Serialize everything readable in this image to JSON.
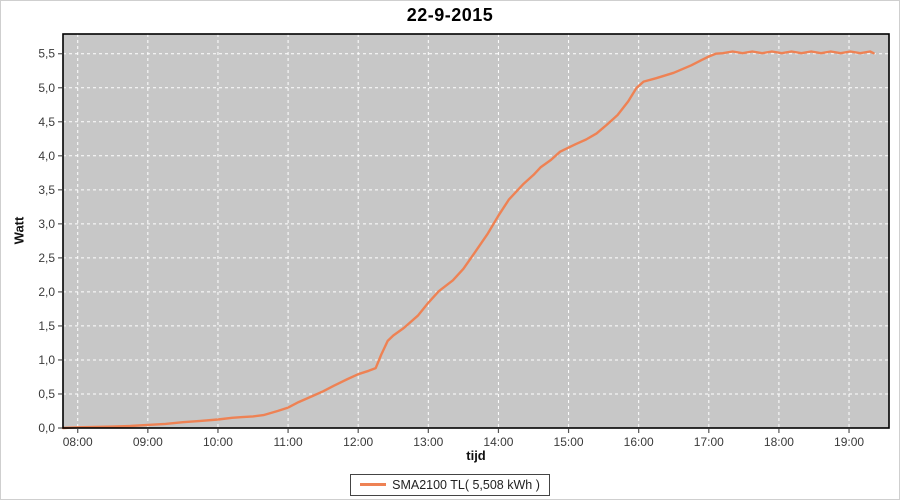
{
  "window": {
    "title": "22-9-2015"
  },
  "legend": {
    "label": "SMA2100 TL( 5,508 kWh )"
  },
  "colors": {
    "plot_background": "#c7c7c7",
    "grid_line": "#ffffff",
    "plot_border": "#000000",
    "series_line": "#ee8254",
    "tick_label": "#3a3a3a",
    "tick_mark": "#555555"
  },
  "chart_data": {
    "type": "line",
    "title": "22-9-2015",
    "xlabel": "tijd",
    "ylabel": "Watt",
    "grid": "on",
    "legend_position": "bottom-center",
    "x_axis": {
      "unit": "time",
      "range_hours": [
        7.79,
        19.57
      ],
      "tick_hours": [
        8,
        9,
        10,
        11,
        12,
        13,
        14,
        15,
        16,
        17,
        18,
        19
      ],
      "tick_labels": [
        "08:00",
        "09:00",
        "10:00",
        "11:00",
        "12:00",
        "13:00",
        "14:00",
        "15:00",
        "16:00",
        "17:00",
        "18:00",
        "19:00"
      ]
    },
    "y_axis": {
      "range": [
        0,
        5.79
      ],
      "tick_values": [
        0.0,
        0.5,
        1.0,
        1.5,
        2.0,
        2.5,
        3.0,
        3.5,
        4.0,
        4.5,
        5.0,
        5.5
      ],
      "tick_labels": [
        "0,0",
        "0,5",
        "1,0",
        "1,5",
        "2,0",
        "2,5",
        "3,0",
        "3,5",
        "4,0",
        "4,5",
        "5,0",
        "5,5"
      ]
    },
    "series": [
      {
        "name": "SMA2100 TL( 5,508 kWh )",
        "color": "#ee8254",
        "total_kwh_label": "5,508 kWh",
        "points": [
          [
            7.79,
            0.0
          ],
          [
            8.0,
            0.01
          ],
          [
            8.25,
            0.015
          ],
          [
            8.5,
            0.02
          ],
          [
            8.75,
            0.03
          ],
          [
            9.0,
            0.045
          ],
          [
            9.25,
            0.06
          ],
          [
            9.5,
            0.085
          ],
          [
            9.75,
            0.105
          ],
          [
            10.0,
            0.125
          ],
          [
            10.2,
            0.15
          ],
          [
            10.35,
            0.16
          ],
          [
            10.5,
            0.17
          ],
          [
            10.65,
            0.19
          ],
          [
            10.85,
            0.25
          ],
          [
            11.0,
            0.3
          ],
          [
            11.15,
            0.38
          ],
          [
            11.35,
            0.47
          ],
          [
            11.5,
            0.54
          ],
          [
            11.65,
            0.62
          ],
          [
            11.85,
            0.72
          ],
          [
            12.0,
            0.79
          ],
          [
            12.15,
            0.84
          ],
          [
            12.25,
            0.88
          ],
          [
            12.33,
            1.08
          ],
          [
            12.42,
            1.28
          ],
          [
            12.5,
            1.36
          ],
          [
            12.65,
            1.47
          ],
          [
            12.85,
            1.65
          ],
          [
            13.0,
            1.84
          ],
          [
            13.15,
            2.01
          ],
          [
            13.35,
            2.17
          ],
          [
            13.5,
            2.34
          ],
          [
            13.65,
            2.56
          ],
          [
            13.85,
            2.86
          ],
          [
            14.0,
            3.12
          ],
          [
            14.15,
            3.36
          ],
          [
            14.35,
            3.58
          ],
          [
            14.5,
            3.72
          ],
          [
            14.6,
            3.83
          ],
          [
            14.75,
            3.94
          ],
          [
            14.88,
            4.06
          ],
          [
            15.0,
            4.12
          ],
          [
            15.1,
            4.17
          ],
          [
            15.25,
            4.24
          ],
          [
            15.4,
            4.33
          ],
          [
            15.55,
            4.46
          ],
          [
            15.7,
            4.6
          ],
          [
            15.85,
            4.8
          ],
          [
            15.97,
            5.0
          ],
          [
            16.07,
            5.09
          ],
          [
            16.25,
            5.14
          ],
          [
            16.5,
            5.22
          ],
          [
            16.75,
            5.33
          ],
          [
            16.9,
            5.41
          ],
          [
            17.0,
            5.46
          ],
          [
            17.1,
            5.5
          ],
          [
            17.2,
            5.508
          ]
        ],
        "flat_tail": {
          "from": 17.2,
          "to": 19.35,
          "base": 5.508,
          "blip_amplitude": 0.025,
          "blip_interval_hours": 0.14
        }
      }
    ]
  }
}
